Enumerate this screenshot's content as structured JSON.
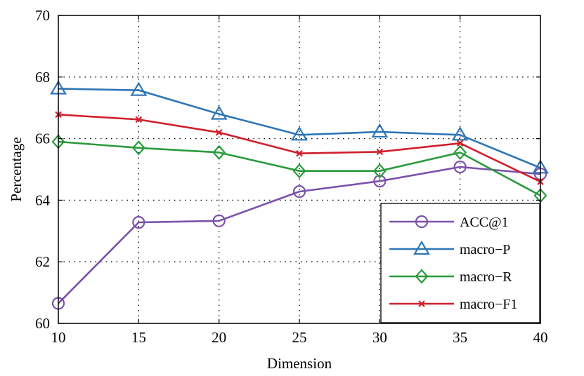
{
  "chart_data": {
    "type": "line",
    "xlabel": "Dimension",
    "ylabel": "Percentage",
    "x": [
      10,
      15,
      20,
      25,
      30,
      35,
      40
    ],
    "xlim": [
      10,
      40
    ],
    "ylim": [
      60,
      70
    ],
    "xticks": [
      10,
      15,
      20,
      25,
      30,
      35,
      40
    ],
    "yticks": [
      60,
      62,
      64,
      66,
      68,
      70
    ],
    "grid": true,
    "legend_position": "bottom-right",
    "series": [
      {
        "name": "ACC@1",
        "color": "#7b52ab",
        "marker": "circle",
        "values": [
          60.65,
          63.28,
          63.33,
          64.28,
          64.62,
          65.08,
          64.85
        ]
      },
      {
        "name": "macro−P",
        "color": "#2e75b6",
        "marker": "triangle",
        "values": [
          67.62,
          67.57,
          66.8,
          66.12,
          66.22,
          66.12,
          65.05
        ]
      },
      {
        "name": "macro−R",
        "color": "#2a9a3c",
        "marker": "diamond",
        "values": [
          65.9,
          65.7,
          65.55,
          64.95,
          64.95,
          65.55,
          64.15
        ]
      },
      {
        "name": "macro−F1",
        "color": "#d0202b",
        "marker": "x",
        "values": [
          66.78,
          66.62,
          66.2,
          65.52,
          65.57,
          65.85,
          64.6
        ]
      }
    ]
  }
}
